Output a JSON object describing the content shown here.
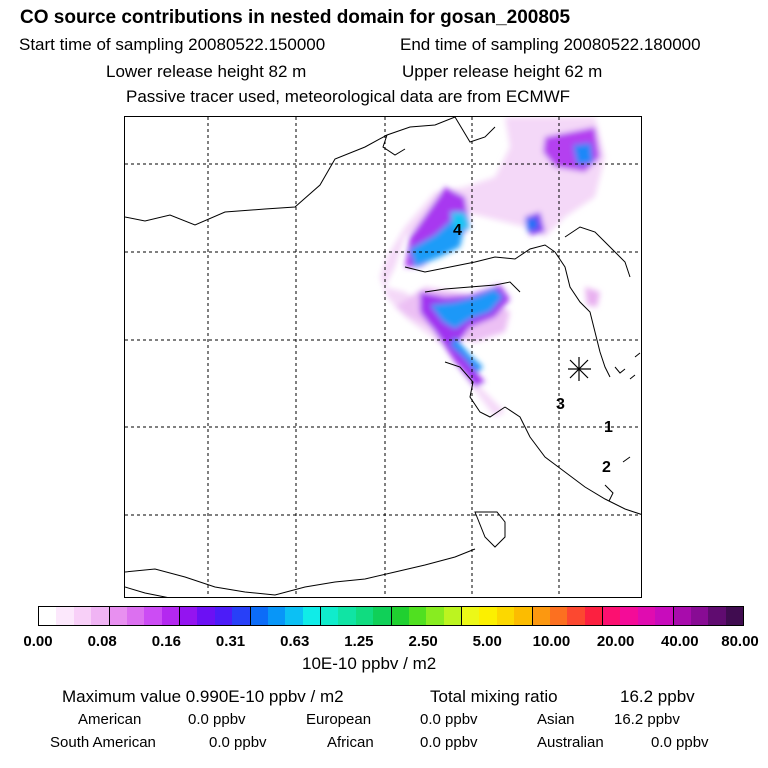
{
  "header": {
    "title": "CO  source contributions in nested domain for gosan_200805",
    "start_label": "Start time of sampling 20080522.150000",
    "end_label": "End time of sampling 20080522.180000",
    "lower_label": "Lower release height   82 m",
    "upper_label": "Upper release height   62 m",
    "tracer_note": "Passive tracer used, meteorological data are from ECMWF"
  },
  "map": {
    "markers": [
      "4",
      "3",
      "1",
      "2"
    ],
    "receptor_icon": "asterisk-icon"
  },
  "colorbar": {
    "colors": [
      "#ffffff",
      "#fce8fc",
      "#f8d0f8",
      "#f0b4f4",
      "#e890f0",
      "#dc70f0",
      "#cc4cf4",
      "#b428f0",
      "#9414f0",
      "#6c10f4",
      "#4c1cf8",
      "#2840f8",
      "#0c6cf8",
      "#0896f8",
      "#0cc0f4",
      "#10ece8",
      "#10eccc",
      "#10e4a4",
      "#10dc80",
      "#10d058",
      "#20d030",
      "#50e020",
      "#88ec20",
      "#bcf420",
      "#ecf818",
      "#fcf000",
      "#fcd800",
      "#fcbc00",
      "#fc9810",
      "#fc7020",
      "#fc4830",
      "#fc2040",
      "#fc1070",
      "#f40c98",
      "#e00cb0",
      "#c80cbc",
      "#a80cac",
      "#880c94",
      "#600c70",
      "#400c50"
    ],
    "ticks": [
      "0.00",
      "0.08",
      "0.16",
      "0.31",
      "0.63",
      "1.25",
      "2.50",
      "5.00",
      "10.00",
      "20.00",
      "40.00",
      "80.00"
    ],
    "units": "10E-10 ppbv / m2"
  },
  "summary": {
    "max_label": "Maximum value  0.990E-10 ppbv / m2",
    "total_label": "Total mixing ratio",
    "total_value": "16.2 ppbv",
    "american_label": "American",
    "american_value": "0.0 ppbv",
    "european_label": "European",
    "european_value": "0.0 ppbv",
    "asian_label": "Asian",
    "asian_value": "16.2 ppbv",
    "south_american_label": "South American",
    "south_american_value": "0.0 ppbv",
    "african_label": "African",
    "african_value": "0.0 ppbv",
    "australian_label": "Australian",
    "australian_value": "0.0 ppbv"
  }
}
